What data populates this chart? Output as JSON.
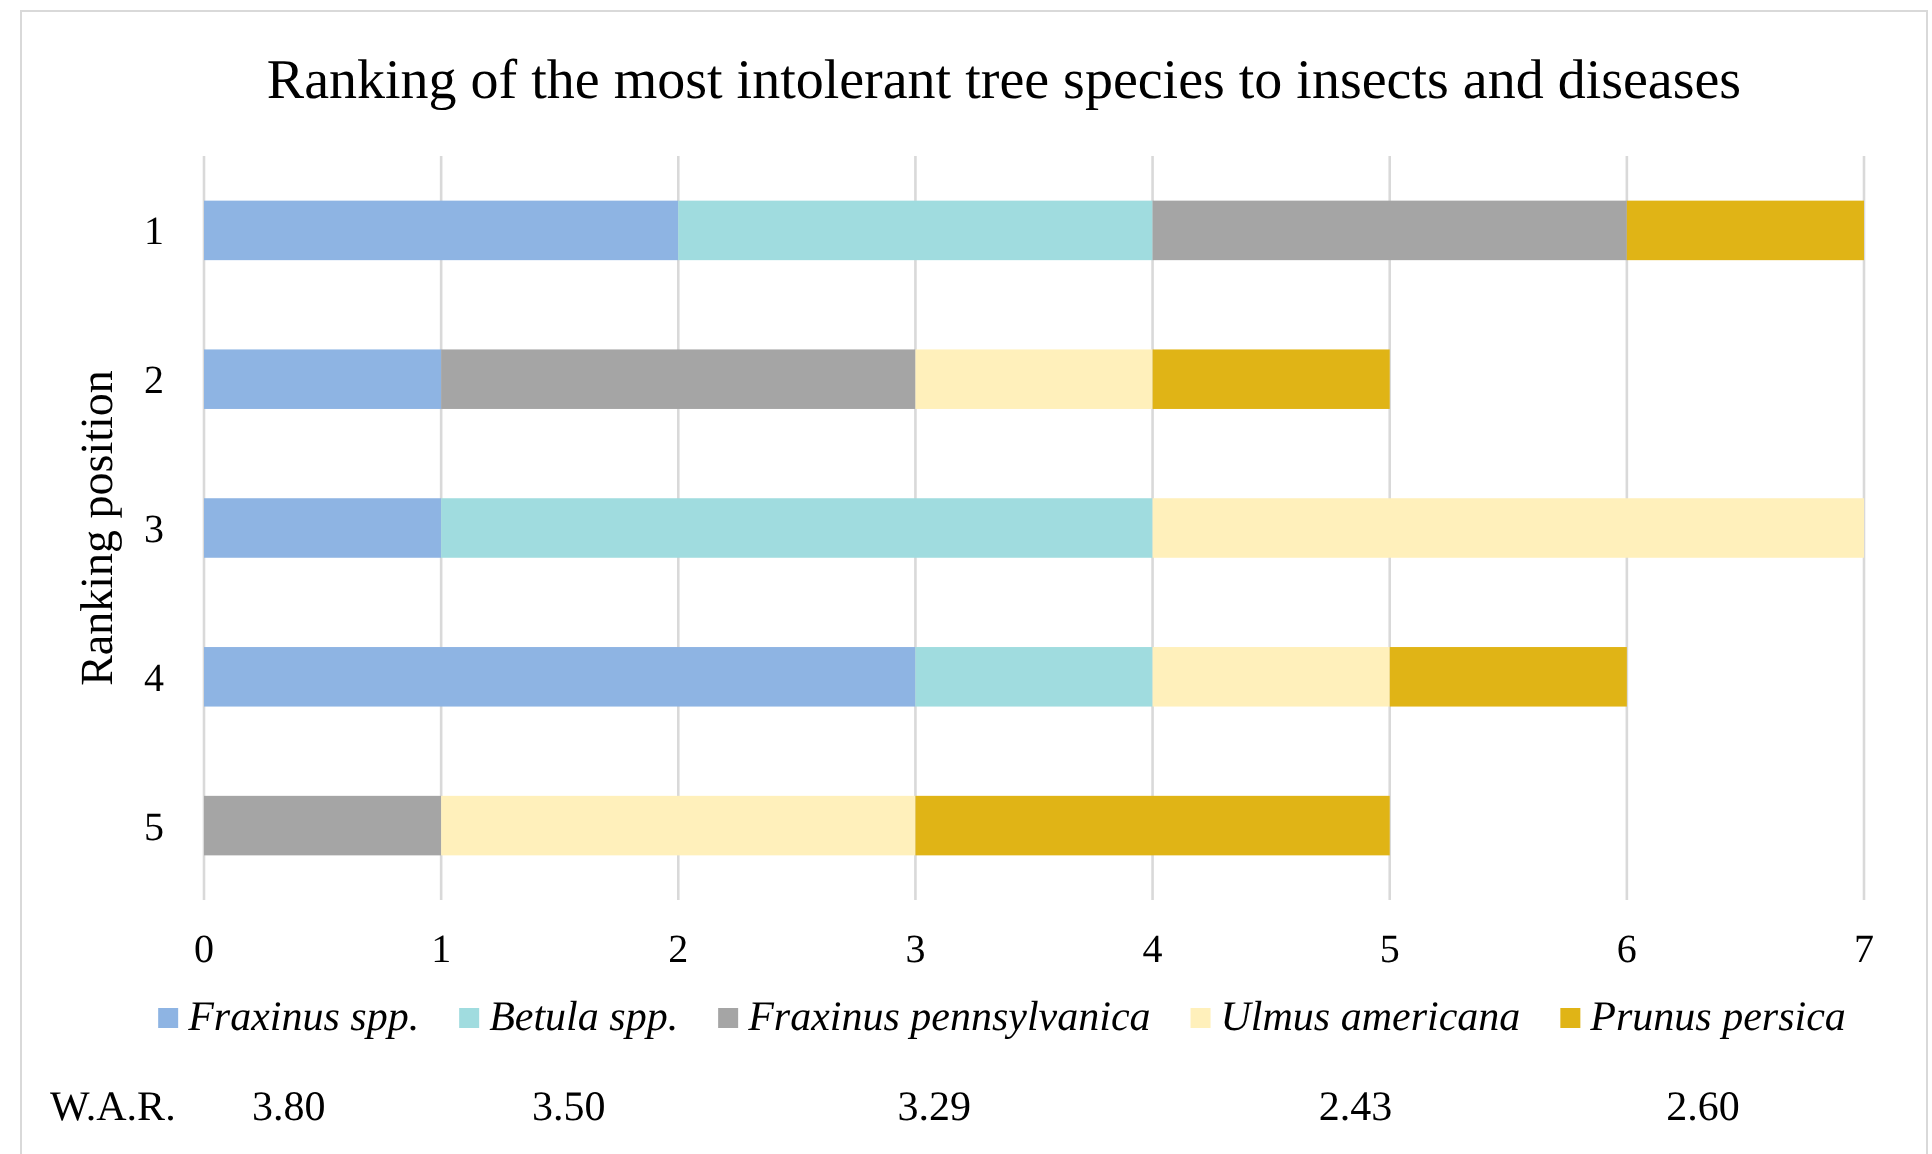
{
  "chart_data": {
    "type": "bar",
    "orientation": "horizontal",
    "stacked": true,
    "title": "Ranking of the most intolerant tree species to insects and diseases",
    "ylabel": "Ranking position",
    "categories": [
      "1",
      "2",
      "3",
      "4",
      "5"
    ],
    "series": [
      {
        "name": "Fraxinus spp.",
        "color": "#8eb4e3",
        "values": [
          2,
          1,
          1,
          3,
          0
        ]
      },
      {
        "name": "Betula spp.",
        "color": "#a0dcdf",
        "values": [
          2,
          0,
          3,
          1,
          0
        ]
      },
      {
        "name": "Fraxinus pennsylvanica",
        "color": "#a5a5a5",
        "values": [
          2,
          2,
          0,
          0,
          1
        ]
      },
      {
        "name": "Ulmus americana",
        "color": "#fff0bb",
        "values": [
          0,
          1,
          3,
          1,
          2
        ]
      },
      {
        "name": "Prunus persica",
        "color": "#e0b416",
        "values": [
          1,
          1,
          0,
          1,
          2
        ]
      }
    ],
    "xlim": [
      0,
      7
    ],
    "xticks": [
      0,
      1,
      2,
      3,
      4,
      5,
      6,
      7
    ],
    "grid": "x",
    "legend": "bottom",
    "annotations": [
      "W.A.R.",
      "3.80",
      "3.50",
      "3.29",
      "2.43",
      "2.60"
    ]
  }
}
